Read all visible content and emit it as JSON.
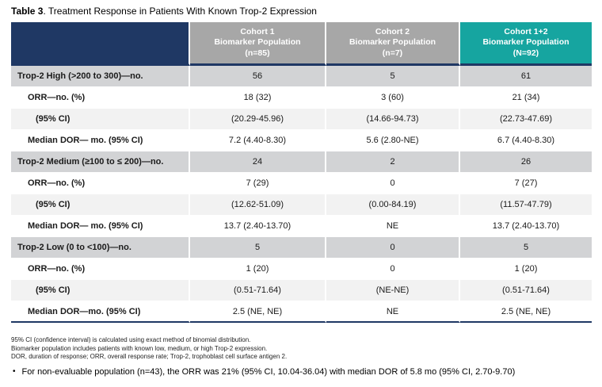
{
  "title": {
    "bold": "Table 3",
    "rest": ". Treatment Response in Patients With Known Trop-2 Expression"
  },
  "table": {
    "corner_label": "",
    "columns": [
      {
        "lines": [
          "Cohort 1",
          "Biomarker Population",
          "(n=85)"
        ],
        "bg": "#A7A7A7"
      },
      {
        "lines": [
          "Cohort 2",
          "Biomarker Population",
          "(n=7)"
        ],
        "bg": "#A7A7A7"
      },
      {
        "lines": [
          "Cohort 1+2",
          "Biomarker Population",
          "(N=92)"
        ],
        "bg": "#16A5A0"
      }
    ],
    "rows": [
      {
        "type": "category",
        "label": "Trop-2 High (>200 to 300)—no.",
        "values": [
          "56",
          "5",
          "61"
        ]
      },
      {
        "type": "level1",
        "label": "ORR—no. (%)",
        "values": [
          "18 (32)",
          "3 (60)",
          "21 (34)"
        ]
      },
      {
        "type": "level2",
        "label": "(95% CI)",
        "values": [
          "(20.29-45.96)",
          "(14.66-94.73)",
          "(22.73-47.69)"
        ]
      },
      {
        "type": "level1",
        "label": "Median DOR— mo. (95% CI)",
        "values": [
          "7.2 (4.40-8.30)",
          "5.6 (2.80-NE)",
          "6.7 (4.40-8.30)"
        ]
      },
      {
        "type": "category",
        "label": "Trop-2 Medium (≥100 to ≤ 200)—no.",
        "values": [
          "24",
          "2",
          "26"
        ]
      },
      {
        "type": "level1",
        "label": "ORR—no. (%)",
        "values": [
          "7 (29)",
          "0",
          "7 (27)"
        ]
      },
      {
        "type": "level2",
        "label": "(95% CI)",
        "values": [
          "(12.62-51.09)",
          "(0.00-84.19)",
          "(11.57-47.79)"
        ]
      },
      {
        "type": "level1",
        "label": "Median DOR— mo. (95% CI)",
        "values": [
          "13.7 (2.40-13.70)",
          "NE",
          "13.7 (2.40-13.70)"
        ]
      },
      {
        "type": "category",
        "label": "Trop-2 Low (0 to <100)—no.",
        "values": [
          "5",
          "0",
          "5"
        ]
      },
      {
        "type": "level1",
        "label": "ORR—no. (%)",
        "values": [
          "1 (20)",
          "0",
          "1 (20)"
        ]
      },
      {
        "type": "level2",
        "label": "(95% CI)",
        "values": [
          "(0.51-71.64)",
          "(NE-NE)",
          "(0.51-71.64)"
        ]
      },
      {
        "type": "level1",
        "label": "Median DOR—mo. (95% CI)",
        "values": [
          "2.5 (NE, NE)",
          "NE",
          "2.5 (NE, NE)"
        ]
      }
    ]
  },
  "footnotes": [
    "95% CI (confidence interval) is calculated using exact method of binomial distribution.",
    "Biomarker population includes patients with known low, medium, or high Trop-2 expression.",
    "DOR, duration of response; ORR, overall response rate; Trop-2, trophoblast cell surface antigen 2."
  ],
  "bullet": {
    "marker": "•",
    "text": "For non-evaluable population (n=43), the ORR was 21% (95% CI, 10.04-36.04) with median DOR of 5.8 mo (95% CI, 2.70-9.70)"
  },
  "colors": {
    "navy": "#1F3864",
    "header_gray": "#A7A7A7",
    "teal": "#16A5A0",
    "category_row": "#D2D3D5",
    "alt_row": "#F2F2F2"
  }
}
